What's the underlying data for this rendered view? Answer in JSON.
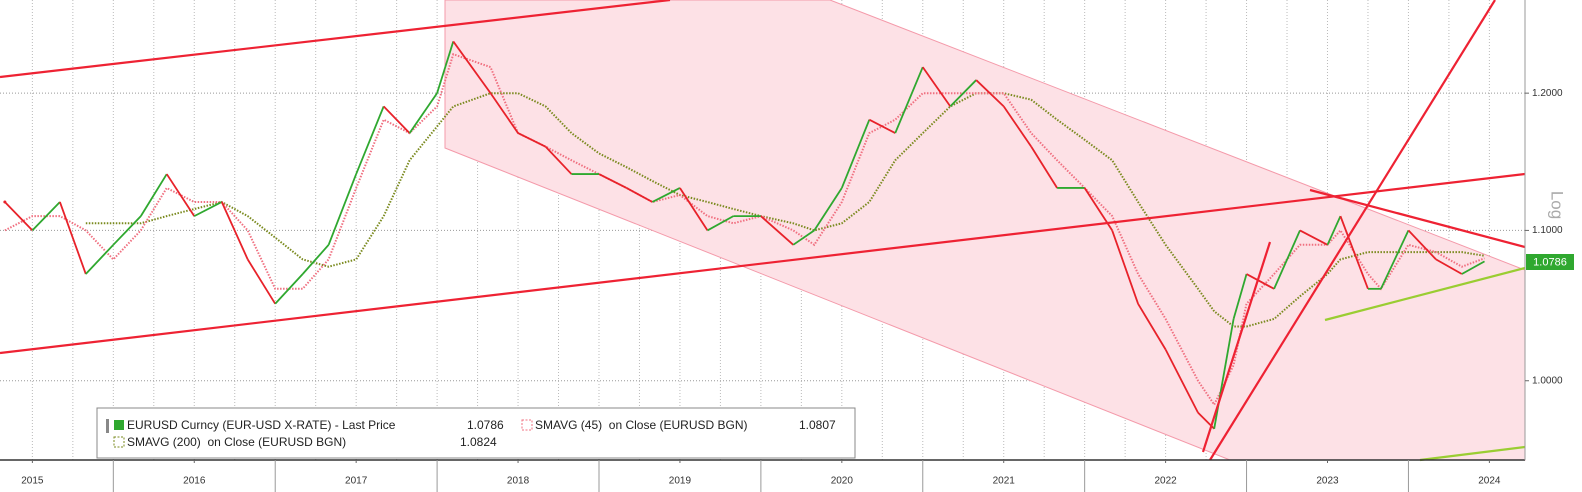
{
  "chart_data": {
    "type": "line",
    "log_scale": true,
    "y_axis_label": "Log",
    "x": [
      2015.33,
      2015.5,
      2015.67,
      2015.83,
      2016.0,
      2016.17,
      2016.33,
      2016.5,
      2016.67,
      2016.83,
      2017.0,
      2017.17,
      2017.33,
      2017.5,
      2017.67,
      2017.83,
      2018.0,
      2018.1,
      2018.33,
      2018.5,
      2018.67,
      2018.83,
      2019.0,
      2019.17,
      2019.33,
      2019.5,
      2019.67,
      2019.83,
      2020.0,
      2020.2,
      2020.33,
      2020.5,
      2020.67,
      2020.83,
      2021.0,
      2021.17,
      2021.33,
      2021.5,
      2021.67,
      2021.83,
      2022.0,
      2022.17,
      2022.33,
      2022.5,
      2022.7,
      2022.8,
      2022.92,
      2023.0,
      2023.17,
      2023.33,
      2023.5,
      2023.58,
      2023.75,
      2023.83,
      2024.0,
      2024.17,
      2024.33,
      2024.47
    ],
    "series": [
      {
        "name": "EURUSD Curncy (EUR-USD X-RATE) - Last Price",
        "last": 1.0786,
        "color": "#e8222a",
        "up_color": "#2fa82f",
        "values": [
          1.12,
          1.1,
          1.12,
          1.07,
          1.09,
          1.11,
          1.14,
          1.11,
          1.12,
          1.08,
          1.05,
          1.07,
          1.09,
          1.14,
          1.19,
          1.17,
          1.2,
          1.24,
          1.2,
          1.17,
          1.16,
          1.14,
          1.14,
          1.13,
          1.12,
          1.13,
          1.1,
          1.11,
          1.11,
          1.09,
          1.1,
          1.13,
          1.18,
          1.17,
          1.22,
          1.19,
          1.21,
          1.19,
          1.16,
          1.13,
          1.13,
          1.1,
          1.05,
          1.02,
          0.98,
          0.97,
          1.04,
          1.07,
          1.06,
          1.1,
          1.09,
          1.11,
          1.06,
          1.06,
          1.1,
          1.08,
          1.07,
          1.0786
        ]
      },
      {
        "name": "SMAVG (45)  on Close (EURUSD BGN)",
        "last": 1.0807,
        "color": "#f07080",
        "values": [
          1.1,
          1.11,
          1.11,
          1.1,
          1.08,
          1.1,
          1.13,
          1.12,
          1.12,
          1.1,
          1.06,
          1.06,
          1.08,
          1.13,
          1.18,
          1.17,
          1.19,
          1.23,
          1.22,
          1.17,
          1.16,
          1.15,
          1.14,
          1.13,
          1.12,
          1.125,
          1.11,
          1.105,
          1.11,
          1.1,
          1.09,
          1.12,
          1.17,
          1.18,
          1.2,
          1.2,
          1.2,
          1.2,
          1.17,
          1.15,
          1.13,
          1.11,
          1.07,
          1.04,
          1.0,
          0.985,
          1.01,
          1.05,
          1.07,
          1.09,
          1.09,
          1.1,
          1.07,
          1.06,
          1.09,
          1.085,
          1.075,
          1.0807
        ]
      },
      {
        "name": "SMAVG (200)  on Close (EURUSD BGN)",
        "last": 1.0824,
        "color": "#7a8a1e",
        "values": [
          null,
          null,
          null,
          1.105,
          1.105,
          1.105,
          1.11,
          1.115,
          1.12,
          1.11,
          1.095,
          1.08,
          1.075,
          1.08,
          1.11,
          1.15,
          1.175,
          1.19,
          1.2,
          1.2,
          1.19,
          1.17,
          1.155,
          1.145,
          1.135,
          1.125,
          1.12,
          1.115,
          1.11,
          1.105,
          1.1,
          1.105,
          1.12,
          1.15,
          1.17,
          1.19,
          1.2,
          1.2,
          1.195,
          1.18,
          1.165,
          1.15,
          1.12,
          1.09,
          1.06,
          1.045,
          1.035,
          1.035,
          1.04,
          1.055,
          1.07,
          1.08,
          1.085,
          1.085,
          1.085,
          1.085,
          1.085,
          1.0824
        ]
      }
    ],
    "xlim": [
      2015.3,
      2024.72
    ],
    "xticks": [
      {
        "value": 2015.5,
        "label": "2015"
      },
      {
        "value": 2016.5,
        "label": "2016"
      },
      {
        "value": 2017.5,
        "label": "2017"
      },
      {
        "value": 2018.5,
        "label": "2018"
      },
      {
        "value": 2019.5,
        "label": "2019"
      },
      {
        "value": 2020.5,
        "label": "2020"
      },
      {
        "value": 2021.5,
        "label": "2021"
      },
      {
        "value": 2022.5,
        "label": "2022"
      },
      {
        "value": 2023.5,
        "label": "2023"
      },
      {
        "value": 2024.5,
        "label": "2024"
      }
    ],
    "ylim": [
      0.951,
      1.273
    ],
    "yticks": [
      {
        "value": 1.0,
        "label": "1.0000"
      },
      {
        "value": 1.1,
        "label": "1.1000"
      },
      {
        "value": 1.2,
        "label": "1.2000"
      }
    ],
    "grid": true
  }
}
